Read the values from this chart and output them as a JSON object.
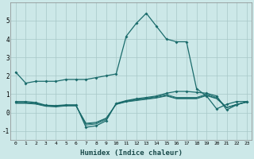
{
  "xlabel": "Humidex (Indice chaleur)",
  "bg_color": "#cce8e8",
  "grid_color": "#b8d8d8",
  "line_color": "#1a6b6b",
  "xlim": [
    -0.5,
    23.5
  ],
  "ylim": [
    -1.5,
    6.0
  ],
  "yticks": [
    -1,
    0,
    1,
    2,
    3,
    4,
    5
  ],
  "xticks": [
    0,
    1,
    2,
    3,
    4,
    5,
    6,
    7,
    8,
    9,
    10,
    11,
    12,
    13,
    14,
    15,
    16,
    17,
    18,
    19,
    20,
    21,
    22,
    23
  ],
  "line1_x": [
    0,
    1,
    2,
    3,
    4,
    5,
    6,
    7,
    8,
    9,
    10,
    11,
    12,
    13,
    14,
    15,
    16,
    17,
    18,
    19,
    20,
    21,
    22,
    23
  ],
  "line1_y": [
    2.2,
    1.6,
    1.7,
    1.7,
    1.7,
    1.8,
    1.8,
    1.8,
    1.9,
    2.0,
    2.1,
    4.15,
    4.85,
    5.4,
    4.7,
    4.0,
    3.85,
    3.85,
    1.3,
    0.9,
    0.2,
    0.45,
    0.6,
    0.6
  ],
  "line2_x": [
    0,
    1,
    2,
    3,
    4,
    5,
    6,
    7,
    8,
    9,
    10,
    11,
    12,
    13,
    14,
    15,
    16,
    17,
    18,
    19,
    20,
    21,
    22,
    23
  ],
  "line2_y": [
    0.6,
    0.6,
    0.55,
    0.4,
    0.38,
    0.42,
    0.42,
    -0.8,
    -0.72,
    -0.45,
    0.5,
    0.65,
    0.75,
    0.82,
    0.9,
    1.05,
    1.15,
    1.15,
    1.1,
    1.05,
    0.9,
    0.15,
    0.42,
    0.6
  ],
  "line3_x": [
    0,
    1,
    2,
    3,
    4,
    5,
    6,
    7,
    8,
    9,
    10,
    11,
    12,
    13,
    14,
    15,
    16,
    17,
    18,
    19,
    20,
    21,
    22,
    23
  ],
  "line3_y": [
    0.55,
    0.55,
    0.5,
    0.38,
    0.35,
    0.4,
    0.4,
    -0.68,
    -0.62,
    -0.38,
    0.48,
    0.62,
    0.72,
    0.78,
    0.86,
    0.98,
    0.82,
    0.82,
    0.82,
    1.0,
    0.82,
    0.28,
    0.45,
    0.58
  ],
  "line4_x": [
    0,
    1,
    2,
    3,
    4,
    5,
    6,
    7,
    8,
    9,
    10,
    11,
    12,
    13,
    14,
    15,
    16,
    17,
    18,
    19,
    20,
    21,
    22,
    23
  ],
  "line4_y": [
    0.52,
    0.52,
    0.48,
    0.36,
    0.33,
    0.38,
    0.38,
    -0.62,
    -0.57,
    -0.33,
    0.46,
    0.6,
    0.68,
    0.75,
    0.82,
    0.93,
    0.78,
    0.78,
    0.78,
    0.95,
    0.78,
    0.27,
    0.44,
    0.57
  ],
  "line5_x": [
    0,
    1,
    2,
    3,
    4,
    5,
    6,
    7,
    8,
    9,
    10,
    11,
    12,
    13,
    14,
    15,
    16,
    17,
    18,
    19,
    20,
    21,
    22,
    23
  ],
  "line5_y": [
    0.5,
    0.5,
    0.46,
    0.34,
    0.31,
    0.36,
    0.36,
    -0.58,
    -0.53,
    -0.3,
    0.44,
    0.58,
    0.65,
    0.72,
    0.79,
    0.9,
    0.75,
    0.75,
    0.75,
    0.92,
    0.75,
    0.26,
    0.43,
    0.56
  ]
}
